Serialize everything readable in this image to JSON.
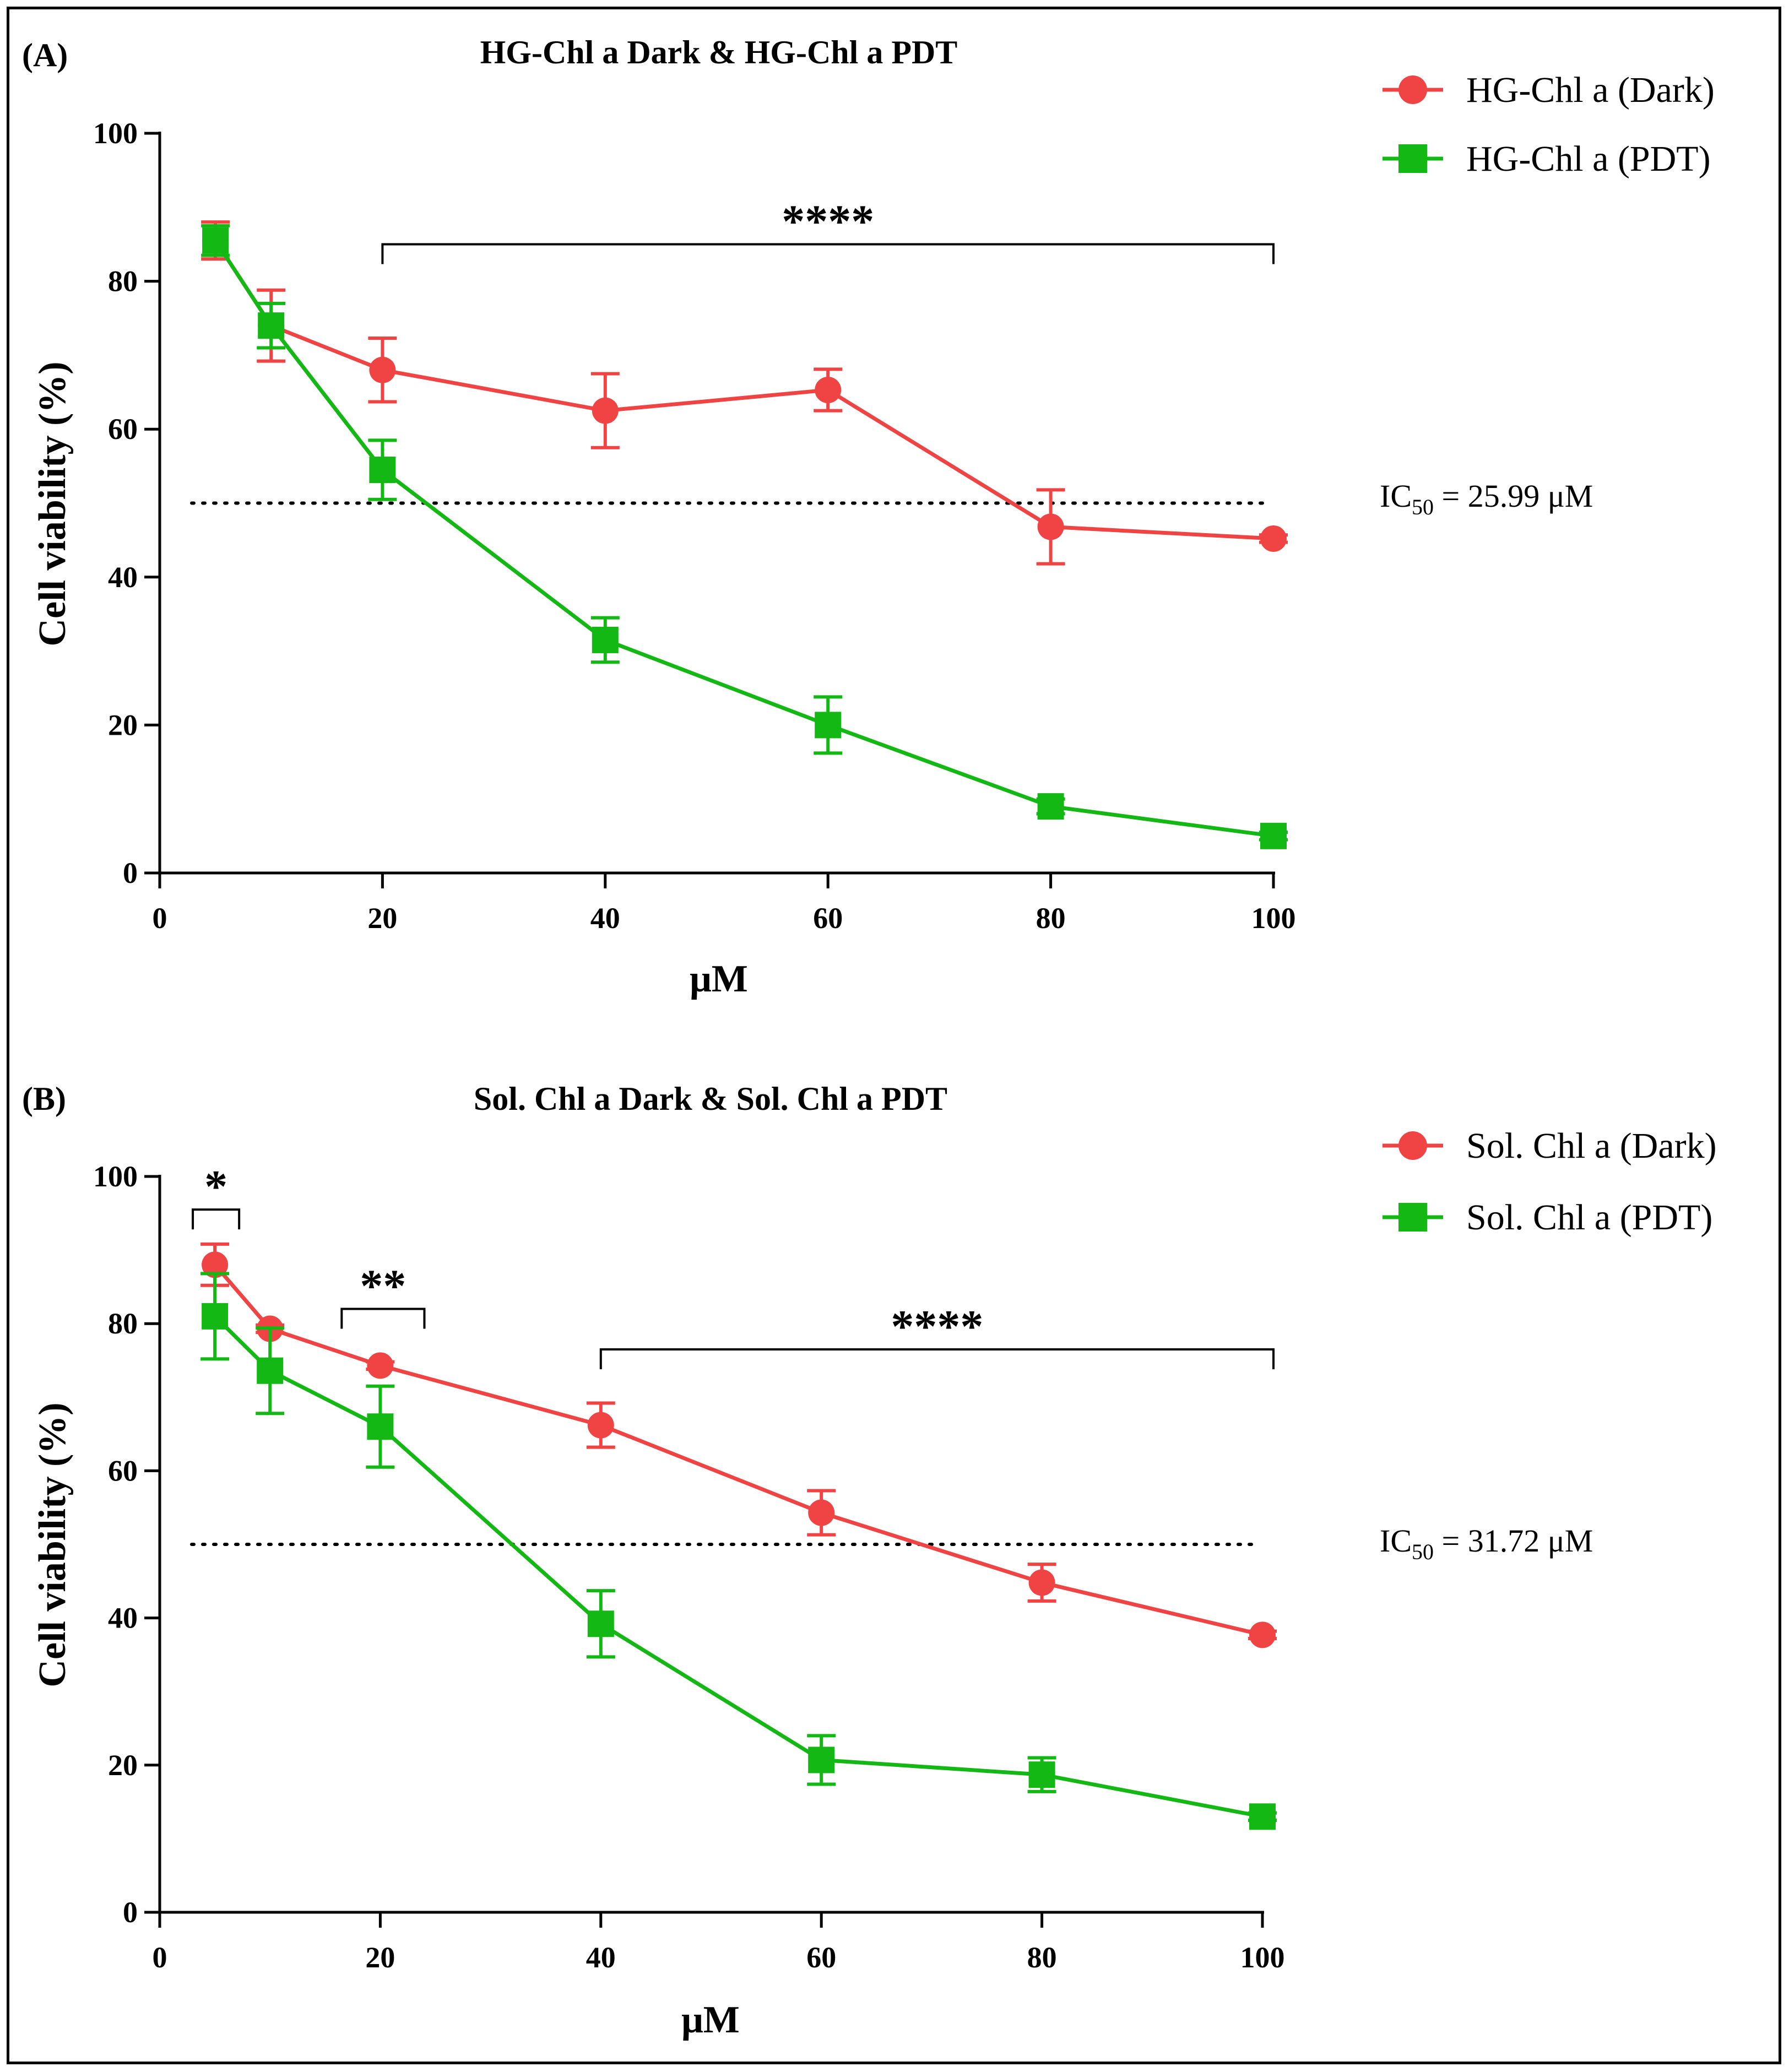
{
  "colors": {
    "dark": "#f04444",
    "pdt": "#14b814"
  },
  "chart_data": [
    {
      "type": "line",
      "panel_label": "(A)",
      "title": "HG-Chl a Dark & HG-Chl a PDT",
      "xlabel": "μM",
      "ylabel": "Cell viability (%)",
      "xlim": [
        0,
        100
      ],
      "ylim": [
        0,
        100
      ],
      "x_ticks": [
        0,
        20,
        40,
        60,
        80,
        100
      ],
      "y_ticks": [
        0,
        20,
        40,
        60,
        80,
        100
      ],
      "legend_position": "top-right",
      "series": [
        {
          "name": "HG-Chl a (Dark)",
          "marker": "circle",
          "color": "#f04444",
          "x": [
            5,
            10,
            20,
            40,
            60,
            80,
            100
          ],
          "y": [
            85.5,
            74,
            68,
            62.5,
            65.3,
            46.8,
            45.2
          ],
          "error": [
            2.5,
            4.8,
            4.3,
            5,
            2.8,
            5,
            0.5
          ]
        },
        {
          "name": "HG-Chl a (PDT)",
          "marker": "square",
          "color": "#14b814",
          "x": [
            5,
            10,
            20,
            40,
            60,
            80,
            100
          ],
          "y": [
            85.5,
            74,
            54.5,
            31.5,
            20,
            9,
            5
          ],
          "error": [
            2,
            3,
            4,
            3,
            3.8,
            1,
            0.5
          ]
        }
      ],
      "reference_line": {
        "y": 50,
        "style": "dotted"
      },
      "annotation": {
        "prefix": "IC",
        "subscript": "50",
        "suffix": " = 25.99 μM"
      },
      "significance": [
        {
          "x1": 20,
          "x2": 100,
          "y": 85,
          "label": "****"
        }
      ]
    },
    {
      "type": "line",
      "panel_label": "(B)",
      "title": "Sol. Chl a Dark & Sol. Chl a PDT",
      "xlabel": "μM",
      "ylabel": "Cell viability (%)",
      "xlim": [
        0,
        100
      ],
      "ylim": [
        0,
        100
      ],
      "x_ticks": [
        0,
        20,
        40,
        60,
        80,
        100
      ],
      "y_ticks": [
        0,
        20,
        40,
        60,
        80,
        100
      ],
      "legend_position": "top-right",
      "series": [
        {
          "name": "Sol. Chl a (Dark)",
          "marker": "circle",
          "color": "#f04444",
          "x": [
            5,
            10,
            20,
            40,
            60,
            80,
            100
          ],
          "y": [
            88,
            79.3,
            74.3,
            66.2,
            54.3,
            44.8,
            37.7
          ],
          "error": [
            2.8,
            0.5,
            0.5,
            3,
            3,
            2.5,
            0.5
          ]
        },
        {
          "name": "Sol. Chl a (PDT)",
          "marker": "square",
          "color": "#14b814",
          "x": [
            5,
            10,
            20,
            40,
            60,
            80,
            100
          ],
          "y": [
            81,
            73.6,
            66,
            39.2,
            20.7,
            18.7,
            13
          ],
          "error": [
            5.8,
            5.8,
            5.5,
            4.5,
            3.3,
            2.3,
            0.5
          ]
        }
      ],
      "reference_line": {
        "y": 50,
        "style": "dotted"
      },
      "annotation": {
        "prefix": "IC",
        "subscript": "50",
        "suffix": " = 31.72 μM"
      },
      "significance": [
        {
          "x1": 3,
          "x2": 7.2,
          "y": 95.5,
          "label": "*"
        },
        {
          "x1": 16.5,
          "x2": 24,
          "y": 82,
          "label": "**"
        },
        {
          "x1": 40,
          "x2": 101,
          "y": 76.5,
          "label": "****"
        }
      ]
    }
  ]
}
